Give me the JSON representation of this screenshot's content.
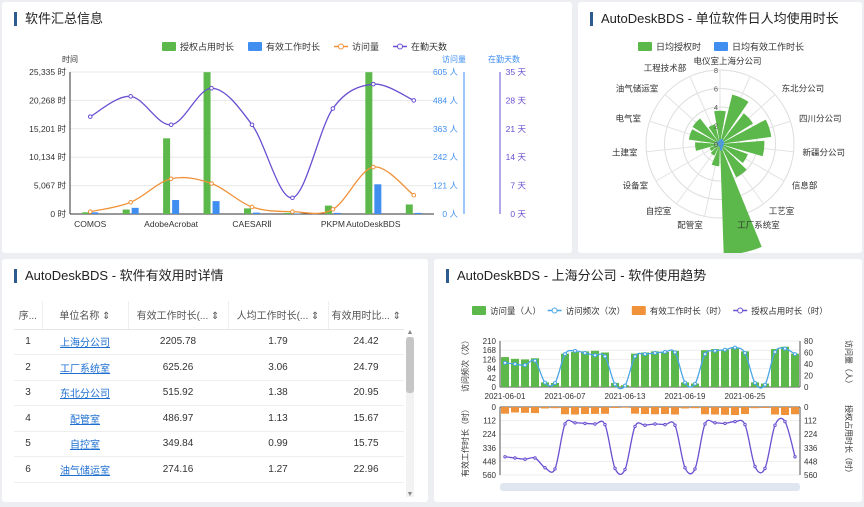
{
  "panels": {
    "summary": {
      "title": "软件汇总信息",
      "left_axis_label": "时间",
      "right_axis1_label": "访问量",
      "right_axis2_label": "在勤天数",
      "legend": [
        "授权占用时长",
        "有效工作时长",
        "访问量",
        "在勤天数"
      ],
      "colors": {
        "auth": "#5cb84a",
        "work": "#3f8ef0",
        "visits": "#f0923a",
        "days": "#6a4fd1"
      }
    },
    "polar": {
      "title": "AutoDeskBDS - 单位软件日人均使用时长",
      "legend": [
        "日均授权时",
        "日均有效工作时长"
      ]
    },
    "table": {
      "title": "AutoDeskBDS - 软件有效用时详情",
      "headers": [
        "序...",
        "单位名称",
        "有效工作时长(...",
        "人均工作时长(...",
        "有效用时比..."
      ],
      "rows": [
        [
          "1",
          "上海分公司",
          "2205.78",
          "1.79",
          "24.42"
        ],
        [
          "2",
          "工厂系统室",
          "625.26",
          "3.06",
          "24.79"
        ],
        [
          "3",
          "东北分公司",
          "515.92",
          "1.38",
          "20.95"
        ],
        [
          "4",
          "配管室",
          "486.97",
          "1.13",
          "15.67"
        ],
        [
          "5",
          "自控室",
          "349.84",
          "0.99",
          "15.75"
        ],
        [
          "6",
          "油气储运室",
          "274.16",
          "1.27",
          "22.96"
        ]
      ]
    },
    "trend": {
      "title": "AutoDeskBDS - 上海分公司 - 软件使用趋势",
      "legend": [
        "访问量（人）",
        "访问频次（次）",
        "有效工作时长（时）",
        "授权占用时长（时）"
      ],
      "left_top_label": "访问频次（次）",
      "right_top_label": "访问量（人）",
      "left_bottom_label": "有效工作时长（时）",
      "right_bottom_label": "授权占用时长（时）"
    }
  },
  "chart_data": [
    {
      "type": "bar",
      "title": "软件汇总信息",
      "categories": [
        "COMOS",
        "",
        "AdobeAcrobat",
        "",
        "CAESARⅡ",
        "",
        "PKPM",
        "AutoDeskBDS",
        ""
      ],
      "x_tick_labels": [
        "COMOS",
        "AdobeAcrobat",
        "CAESARⅡ",
        "PKPM",
        "AutoDeskBDS"
      ],
      "y_ticks_left": [
        "0 时",
        "5,067 时",
        "10,134 时",
        "15,201 时",
        "20,268 时",
        "25,335 时"
      ],
      "y_ticks_right1": [
        "0 人",
        "121 人",
        "242 人",
        "363 人",
        "484 人",
        "605 人"
      ],
      "y_ticks_right2": [
        "0 天",
        "7 天",
        "14 天",
        "21 天",
        "28 天",
        "35 天"
      ],
      "ylim": [
        0,
        25335
      ],
      "series": [
        {
          "name": "授权占用时长",
          "values": [
            300,
            800,
            13500,
            25300,
            1000,
            200,
            1500,
            25300,
            1700
          ]
        },
        {
          "name": "有效工作时长",
          "values": [
            300,
            1100,
            2500,
            2300,
            250,
            100,
            200,
            5300,
            200
          ]
        },
        {
          "name": "访问量",
          "values": [
            10,
            50,
            150,
            130,
            30,
            10,
            20,
            200,
            80
          ]
        },
        {
          "name": "在勤天数",
          "values": [
            24,
            29,
            22,
            31,
            22,
            4,
            26,
            32,
            28
          ]
        }
      ]
    },
    {
      "type": "bar",
      "title": "AutoDeskBDS - 单位软件日人均使用时长",
      "categories": [
        "电仪室",
        "上海分公司",
        "东北分公司",
        "四川分公司",
        "新疆分公司",
        "信息部",
        "工艺室",
        "工厂系统室",
        "配管室",
        "自控室",
        "设备室",
        "土建室",
        "电气室",
        "油气储运室",
        "工程技术部"
      ],
      "radial_ticks": [
        "0",
        "2",
        "4",
        "6",
        "8"
      ],
      "series": [
        {
          "name": "日均授权时",
          "values": [
            3.6,
            5.5,
            4.2,
            5.6,
            4.8,
            3.2,
            4.0,
            12.0,
            2.4,
            1.4,
            1.2,
            2.7,
            3.4,
            3.5,
            2.2
          ]
        },
        {
          "name": "日均有效工作时长",
          "values": [
            0.5,
            0.6,
            0.5,
            0.5,
            0.4,
            0.4,
            0.5,
            0.7,
            0.3,
            0.3,
            0.2,
            0.3,
            0.4,
            0.4,
            0.3
          ]
        }
      ]
    },
    {
      "type": "bar",
      "title": "AutoDeskBDS - 上海分公司 - 软件使用趋势",
      "x_tick_labels": [
        "2021-06-01",
        "2021-06-07",
        "2021-06-13",
        "2021-06-19",
        "2021-06-25"
      ],
      "top_left_ticks": [
        "0",
        "42",
        "84",
        "126",
        "168",
        "210"
      ],
      "top_right_ticks": [
        "0",
        "20",
        "40",
        "60",
        "80"
      ],
      "bottom_left_ticks": [
        "0",
        "112",
        "224",
        "336",
        "448",
        "560"
      ],
      "bottom_right_ticks": [
        "0",
        "112",
        "224",
        "336",
        "448",
        "560"
      ],
      "series": [
        {
          "name": "访问量（人）",
          "values": [
            52,
            49,
            48,
            50,
            8,
            7,
            58,
            61,
            62,
            63,
            60,
            7,
            3,
            58,
            60,
            62,
            61,
            63,
            8,
            6,
            64,
            66,
            65,
            68,
            62,
            8,
            6,
            66,
            70,
            58
          ]
        },
        {
          "name": "访问频次（次）",
          "values": [
            110,
            105,
            100,
            120,
            20,
            18,
            150,
            165,
            155,
            145,
            140,
            12,
            6,
            140,
            150,
            155,
            160,
            158,
            20,
            14,
            150,
            165,
            170,
            180,
            155,
            18,
            10,
            160,
            175,
            150
          ]
        },
        {
          "name": "有效工作时长（时）",
          "values": [
            55,
            45,
            48,
            50,
            12,
            10,
            60,
            62,
            58,
            57,
            56,
            8,
            6,
            55,
            58,
            60,
            58,
            62,
            12,
            10,
            60,
            62,
            64,
            66,
            58,
            10,
            8,
            62,
            66,
            60
          ]
        },
        {
          "name": "授权占用时长（时）",
          "values": [
            410,
            420,
            430,
            420,
            500,
            510,
            140,
            130,
            135,
            140,
            145,
            505,
            515,
            160,
            150,
            140,
            145,
            150,
            500,
            510,
            140,
            130,
            135,
            120,
            145,
            490,
            505,
            150,
            120,
            410
          ]
        }
      ]
    }
  ]
}
